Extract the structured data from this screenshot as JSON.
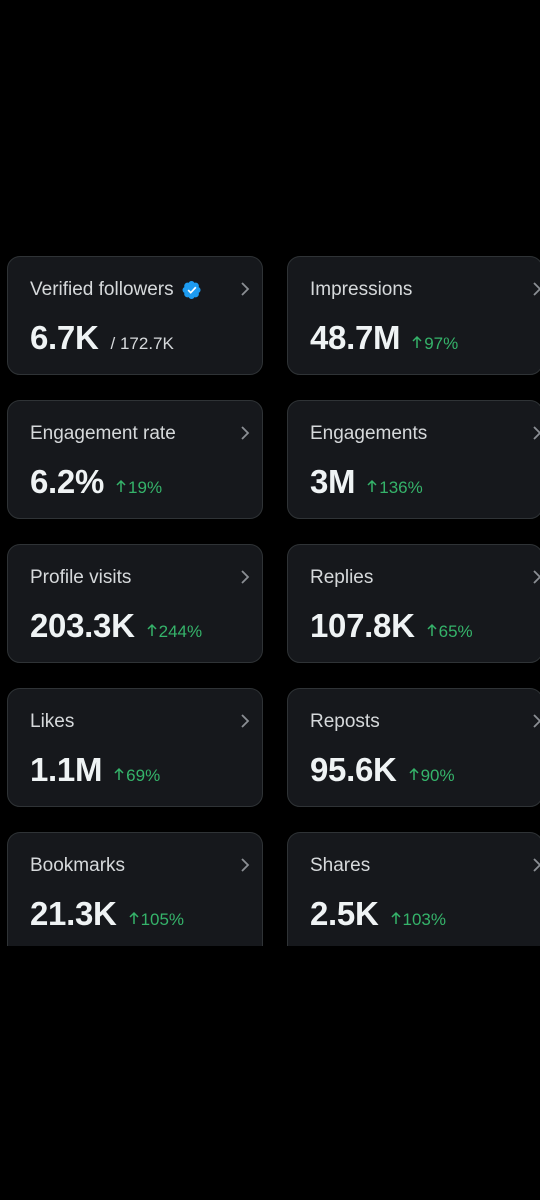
{
  "colors": {
    "background": "#000000",
    "card": "#16181c",
    "card_border": "#2f3336",
    "positive": "#35b36a",
    "verified": "#1d9bf0"
  },
  "metrics": [
    {
      "label": "Verified followers",
      "value": "6.7K",
      "total": "/ 172.7K",
      "verified_icon": "verified-badge-icon"
    },
    {
      "label": "Impressions",
      "value": "48.7M",
      "change": "97%"
    },
    {
      "label": "Engagement rate",
      "value": "6.2%",
      "change": "19%"
    },
    {
      "label": "Engagements",
      "value": "3M",
      "change": "136%"
    },
    {
      "label": "Profile visits",
      "value": "203.3K",
      "change": "244%"
    },
    {
      "label": "Replies",
      "value": "107.8K",
      "change": "65%"
    },
    {
      "label": "Likes",
      "value": "1.1M",
      "change": "69%"
    },
    {
      "label": "Reposts",
      "value": "95.6K",
      "change": "90%"
    },
    {
      "label": "Bookmarks",
      "value": "21.3K",
      "change": "105%"
    },
    {
      "label": "Shares",
      "value": "2.5K",
      "change": "103%"
    }
  ]
}
